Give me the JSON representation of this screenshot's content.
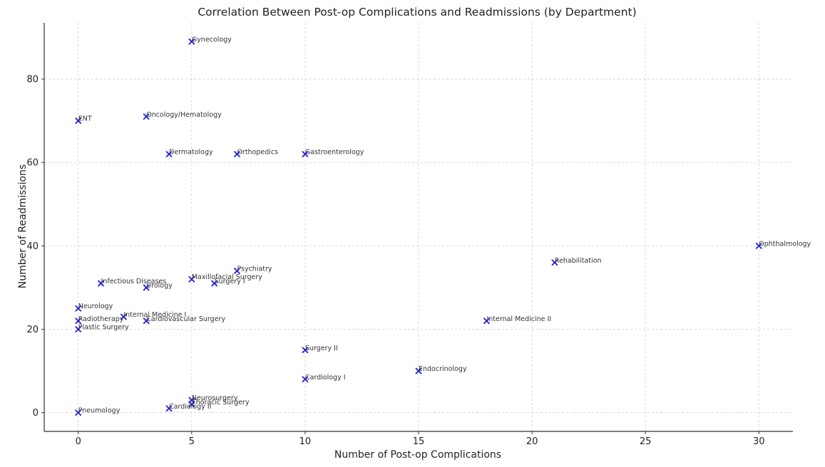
{
  "chart_data": {
    "type": "scatter",
    "title": "Correlation Between Post-op Complications and Readmissions (by Department)",
    "xlabel": "Number of Post-op Complications",
    "ylabel": "Number of Readmissions",
    "xlim": [
      -1.5,
      31.5
    ],
    "ylim": [
      -4.5,
      93.5
    ],
    "xticks": [
      0,
      5,
      10,
      15,
      20,
      25,
      30
    ],
    "yticks": [
      0,
      20,
      40,
      60,
      80
    ],
    "grid": true,
    "marker": "x",
    "marker_color": "#1f1fd6",
    "points": [
      {
        "label": "Gynecology",
        "x": 5,
        "y": 89
      },
      {
        "label": "ENT",
        "x": 0,
        "y": 70
      },
      {
        "label": "Oncology/Hematology",
        "x": 3,
        "y": 71
      },
      {
        "label": "Dermatology",
        "x": 4,
        "y": 62
      },
      {
        "label": "Orthopedics",
        "x": 7,
        "y": 62
      },
      {
        "label": "Gastroenterology",
        "x": 10,
        "y": 62
      },
      {
        "label": "Ophthalmology",
        "x": 30,
        "y": 40
      },
      {
        "label": "Rehabilitation",
        "x": 21,
        "y": 36
      },
      {
        "label": "Psychiatry",
        "x": 7,
        "y": 34
      },
      {
        "label": "Maxillofacial Surgery",
        "x": 5,
        "y": 32
      },
      {
        "label": "Surgery I",
        "x": 6,
        "y": 31
      },
      {
        "label": "Infectious Diseases",
        "x": 1,
        "y": 31
      },
      {
        "label": "Urology",
        "x": 3,
        "y": 30
      },
      {
        "label": "Neurology",
        "x": 0,
        "y": 25
      },
      {
        "label": "Internal Medicine I",
        "x": 2,
        "y": 23
      },
      {
        "label": "Radiotherapy",
        "x": 0,
        "y": 22
      },
      {
        "label": "Cardiovascular Surgery",
        "x": 3,
        "y": 22
      },
      {
        "label": "Internal Medicine II",
        "x": 18,
        "y": 22
      },
      {
        "label": "Plastic Surgery",
        "x": 0,
        "y": 20
      },
      {
        "label": "Surgery II",
        "x": 10,
        "y": 15
      },
      {
        "label": "Endocrinology",
        "x": 15,
        "y": 10
      },
      {
        "label": "Cardiology I",
        "x": 10,
        "y": 8
      },
      {
        "label": "Neurosurgery",
        "x": 5,
        "y": 3
      },
      {
        "label": "Thoracic Surgery",
        "x": 5,
        "y": 2
      },
      {
        "label": "Cardiology II",
        "x": 4,
        "y": 1
      },
      {
        "label": "Pneumology",
        "x": 0,
        "y": 0
      }
    ]
  }
}
